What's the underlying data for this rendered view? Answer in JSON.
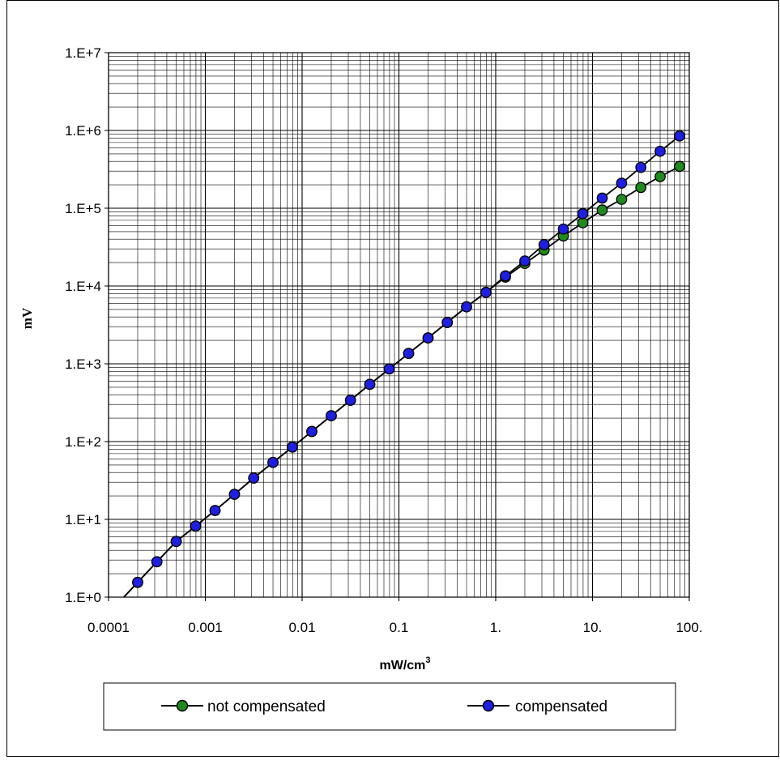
{
  "chart_data": {
    "type": "scatter",
    "title": "",
    "xlabel": "mW/cm",
    "xlabel_sup": "3",
    "ylabel": "mV",
    "xscale": "log",
    "yscale": "log",
    "xlim": [
      0.0001,
      100
    ],
    "ylim": [
      1,
      10000000
    ],
    "grid": true,
    "legend_position": "bottom",
    "x_tick_labels": [
      "0.0001",
      "0.001",
      "0.01",
      "0.1",
      "1.",
      "10.",
      "100."
    ],
    "y_tick_labels": [
      "1.E+0",
      "1.E+1",
      "1.E+2",
      "1.E+3",
      "1.E+4",
      "1.E+5",
      "1.E+6",
      "1.E+7"
    ],
    "series": [
      {
        "name": "not compensated",
        "color": "#1f8a1f",
        "x": [
          0.0002,
          0.000316,
          0.0005,
          0.000794,
          0.00126,
          0.002,
          0.00316,
          0.005,
          0.00794,
          0.0126,
          0.02,
          0.0316,
          0.05,
          0.0794,
          0.126,
          0.2,
          0.316,
          0.5,
          0.794,
          1.26,
          2.0,
          3.16,
          5.0,
          7.94,
          12.6,
          20.0,
          31.6,
          50.0,
          79.4
        ],
        "y": [
          1.55,
          2.85,
          5.2,
          8.2,
          13,
          21,
          34,
          54,
          85,
          135,
          215,
          340,
          545,
          860,
          1360,
          2150,
          3400,
          5400,
          8300,
          13000,
          19500,
          29000,
          44000,
          65000,
          95000,
          130000,
          185000,
          255000,
          345000
        ]
      },
      {
        "name": "compensated",
        "color": "#1f1fe0",
        "x": [
          0.0002,
          0.000316,
          0.0005,
          0.000794,
          0.00126,
          0.002,
          0.00316,
          0.005,
          0.00794,
          0.0126,
          0.02,
          0.0316,
          0.05,
          0.0794,
          0.126,
          0.2,
          0.316,
          0.5,
          0.794,
          1.26,
          2.0,
          3.16,
          5.0,
          7.94,
          12.6,
          20.0,
          31.6,
          50.0,
          79.4
        ],
        "y": [
          1.55,
          2.85,
          5.2,
          8.2,
          13,
          21,
          34,
          54,
          85,
          135,
          215,
          340,
          545,
          860,
          1360,
          2150,
          3400,
          5400,
          8300,
          13500,
          21000,
          34000,
          54000,
          85000,
          135000,
          210000,
          335000,
          540000,
          850000
        ]
      }
    ]
  }
}
